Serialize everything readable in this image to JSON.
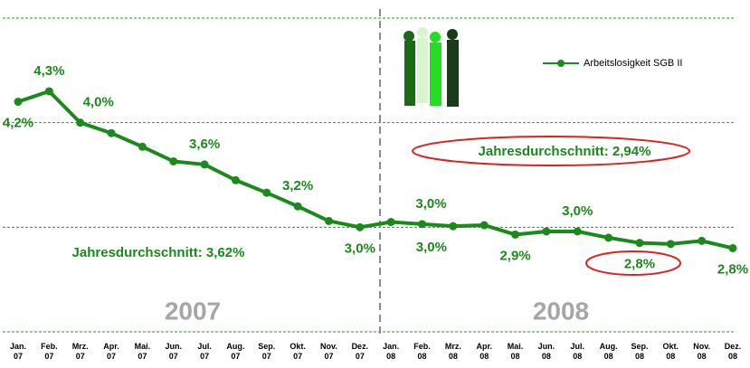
{
  "chart_data": {
    "type": "line",
    "categories": [
      "Jan. 07",
      "Feb. 07",
      "Mrz. 07",
      "Apr. 07",
      "Mai. 07",
      "Jun. 07",
      "Jul. 07",
      "Aug. 07",
      "Sep. 07",
      "Okt. 07",
      "Nov. 07",
      "Dez. 07",
      "Jan. 08",
      "Feb. 08",
      "Mrz. 08",
      "Apr. 08",
      "Mai. 08",
      "Jun. 08",
      "Jul. 08",
      "Aug. 08",
      "Sep. 08",
      "Okt. 08",
      "Nov. 08",
      "Dez. 08"
    ],
    "series": [
      {
        "name": "Arbeitslosigkeit SGB II",
        "color": "#1a8a1a",
        "values": [
          4.2,
          4.3,
          4.0,
          3.9,
          3.77,
          3.63,
          3.6,
          3.45,
          3.33,
          3.2,
          3.06,
          3.0,
          3.05,
          3.03,
          3.01,
          3.02,
          2.93,
          2.96,
          2.96,
          2.9,
          2.85,
          2.84,
          2.87,
          2.8
        ],
        "value_labels": [
          "4,2%",
          "4,3%",
          "4,0%",
          null,
          null,
          null,
          "3,6%",
          null,
          null,
          "3,2%",
          null,
          "3,0%",
          null,
          "3,0%",
          "3,0%",
          null,
          "2,9%",
          null,
          "3,0%",
          null,
          "2,8%",
          null,
          null,
          "2,8%"
        ]
      }
    ],
    "ylim": [
      2,
      5
    ],
    "yticks": [
      2,
      3,
      4,
      5
    ],
    "grid": true,
    "legend": "top-right",
    "annotations": [
      "Jahresdurchschnitt: 3,62%",
      "Jahresdurchschnitt: 2,94%",
      "2007",
      "2008"
    ]
  }
}
